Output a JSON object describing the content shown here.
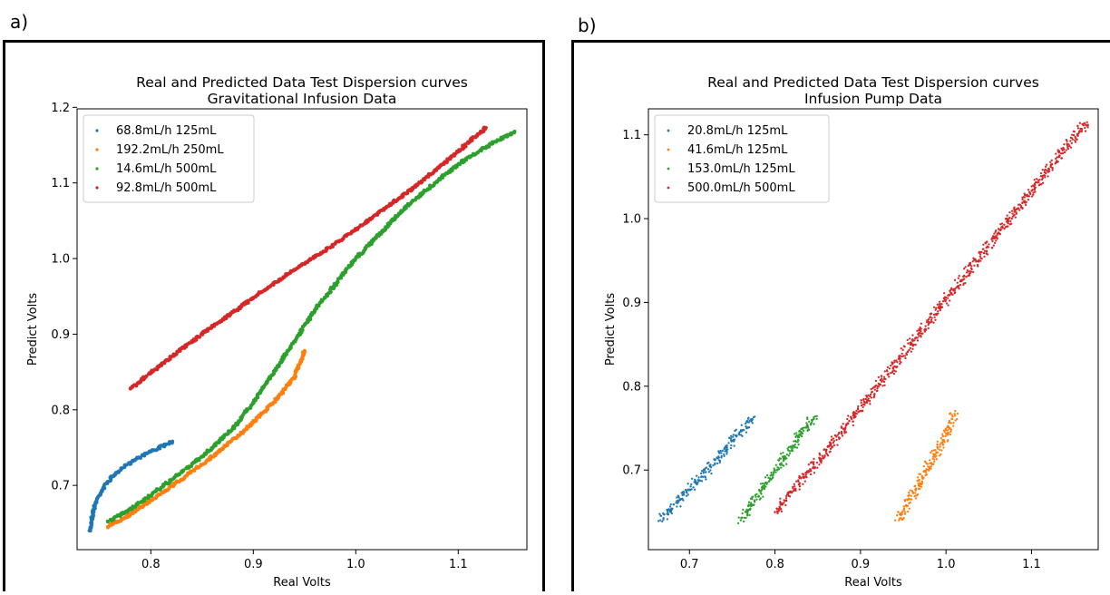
{
  "panels": [
    {
      "label": "a)"
    },
    {
      "label": "b)"
    }
  ],
  "chart_data": [
    {
      "type": "scatter",
      "title": "Real and Predicted Data Test Dispersion curves",
      "subtitle": "Gravitational Infusion Data",
      "xlabel": "Real Volts",
      "ylabel": "Predict Volts",
      "xlim": [
        0.728,
        1.167
      ],
      "ylim": [
        0.615,
        1.198
      ],
      "xticks": [
        0.8,
        0.9,
        1.0,
        1.1
      ],
      "xtick_labels": [
        "0.8",
        "0.9",
        "1.0",
        "1.1"
      ],
      "yticks": [
        0.7,
        0.8,
        0.9,
        1.0,
        1.1,
        1.2
      ],
      "ytick_labels": [
        "0.7",
        "0.8",
        "0.9",
        "1.0",
        "1.1",
        "1.2"
      ],
      "grid": false,
      "legend_position": "top-left",
      "series": [
        {
          "name": "68.8mL/h 125mL",
          "color": "#1f77b4",
          "x": [
            0.741,
            0.742,
            0.744,
            0.747,
            0.752,
            0.758,
            0.766,
            0.776,
            0.788,
            0.8,
            0.812,
            0.821
          ],
          "y": [
            0.64,
            0.655,
            0.667,
            0.68,
            0.693,
            0.705,
            0.716,
            0.727,
            0.737,
            0.745,
            0.752,
            0.758
          ]
        },
        {
          "name": "192.2mL/h 250mL",
          "color": "#ff7f0e",
          "x": [
            0.758,
            0.775,
            0.8,
            0.83,
            0.86,
            0.89,
            0.92,
            0.94,
            0.95
          ],
          "y": [
            0.645,
            0.658,
            0.68,
            0.708,
            0.738,
            0.771,
            0.81,
            0.843,
            0.878
          ]
        },
        {
          "name": "14.6mL/h 500mL",
          "color": "#2ca02c",
          "x": [
            0.758,
            0.78,
            0.81,
            0.85,
            0.88,
            0.9,
            0.93,
            0.96,
            1.0,
            1.05,
            1.1,
            1.13,
            1.155
          ],
          "y": [
            0.652,
            0.668,
            0.697,
            0.738,
            0.775,
            0.81,
            0.87,
            0.932,
            1.0,
            1.07,
            1.125,
            1.15,
            1.168
          ]
        },
        {
          "name": "92.8mL/h 500mL",
          "color": "#d62728",
          "x": [
            0.78,
            0.82,
            0.86,
            0.9,
            0.94,
            0.98,
            1.02,
            1.06,
            1.1,
            1.127
          ],
          "y": [
            0.828,
            0.87,
            0.91,
            0.948,
            0.985,
            1.02,
            1.058,
            1.097,
            1.142,
            1.173
          ]
        }
      ]
    },
    {
      "type": "scatter",
      "title": "Real and Predicted Data Test Dispersion curves",
      "subtitle": "Infusion Pump Data",
      "xlabel": "Real Volts",
      "ylabel": "Predict Volts",
      "xlim": [
        0.652,
        1.178
      ],
      "ylim": [
        0.605,
        1.131
      ],
      "xticks": [
        0.7,
        0.8,
        0.9,
        1.0,
        1.1
      ],
      "xtick_labels": [
        "0.7",
        "0.8",
        "0.9",
        "1.0",
        "1.1"
      ],
      "yticks": [
        0.7,
        0.8,
        0.9,
        1.0,
        1.1
      ],
      "ytick_labels": [
        "0.7",
        "0.8",
        "0.9",
        "1.0",
        "1.1"
      ],
      "grid": false,
      "legend_position": "top-left",
      "series": [
        {
          "name": "20.8mL/h 125mL",
          "color": "#1f77b4",
          "x": [
            0.666,
            0.677,
            0.688,
            0.699,
            0.71,
            0.722,
            0.733,
            0.744,
            0.755,
            0.766,
            0.775
          ],
          "y": [
            0.64,
            0.652,
            0.664,
            0.676,
            0.688,
            0.701,
            0.714,
            0.727,
            0.74,
            0.752,
            0.763
          ]
        },
        {
          "name": "41.6mL/h 125mL",
          "color": "#ff7f0e",
          "x": [
            0.945,
            0.951,
            0.958,
            0.965,
            0.972,
            0.979,
            0.986,
            0.993,
            1.0,
            1.006,
            1.01
          ],
          "y": [
            0.64,
            0.652,
            0.665,
            0.678,
            0.691,
            0.704,
            0.717,
            0.73,
            0.743,
            0.756,
            0.767
          ]
        },
        {
          "name": "153.0mL/h 125mL",
          "color": "#2ca02c",
          "x": [
            0.76,
            0.768,
            0.776,
            0.785,
            0.794,
            0.803,
            0.812,
            0.821,
            0.83,
            0.838,
            0.847
          ],
          "y": [
            0.64,
            0.652,
            0.664,
            0.677,
            0.69,
            0.703,
            0.716,
            0.729,
            0.742,
            0.754,
            0.764
          ]
        },
        {
          "name": "500.0mL/h 500mL",
          "color": "#d62728",
          "x": [
            0.8,
            0.84,
            0.88,
            0.92,
            0.96,
            1.0,
            1.04,
            1.08,
            1.12,
            1.165
          ],
          "y": [
            0.65,
            0.698,
            0.749,
            0.8,
            0.851,
            0.903,
            0.955,
            1.008,
            1.06,
            1.115
          ]
        }
      ]
    }
  ]
}
